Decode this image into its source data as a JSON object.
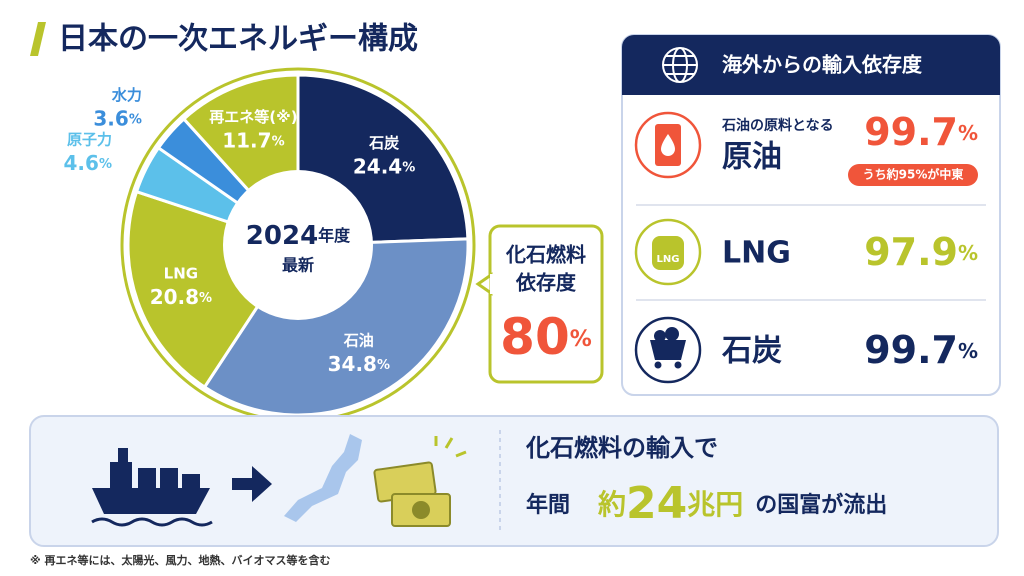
{
  "title": "日本の一次エネルギー構成",
  "chart_data": {
    "type": "pie",
    "center_year": "2024",
    "center_year_suffix": "年度",
    "center_sub": "最新",
    "categories": [
      "石炭",
      "石油",
      "LNG",
      "原子力",
      "水力",
      "再エネ等(※)"
    ],
    "values": [
      24.4,
      34.8,
      20.8,
      4.6,
      3.6,
      11.7
    ],
    "unit": "%",
    "colors": [
      "#14285e",
      "#6c90c6",
      "#b9c42c",
      "#5cc0ea",
      "#3b8edb",
      "#b9c42c"
    ]
  },
  "fossil_dependency": {
    "label_lines": [
      "化石燃料",
      "依存度"
    ],
    "value": 80,
    "unit": "%"
  },
  "import_dependency": {
    "title": "海外からの輸入依存度",
    "unit": "%",
    "items": [
      {
        "subtitle": "石油の原料となる",
        "name": "原油",
        "value": 99.7,
        "note": "うち約95%が中東"
      },
      {
        "name": "LNG",
        "value": 97.9
      },
      {
        "name": "石炭",
        "value": 99.7
      }
    ]
  },
  "outflow": {
    "line1": "化石燃料の輸入で",
    "prefix": "年間",
    "amount_pre": "約",
    "amount": 24,
    "amount_unit": "兆円",
    "suffix": "の国富が流出"
  },
  "footnote": "※ 再エネ等には、太陽光、風力、地熱、バイオマス等を含む"
}
